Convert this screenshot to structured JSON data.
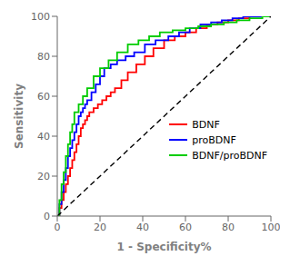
{
  "chart_data": {
    "type": "line",
    "xlabel": "1 - Specificity%",
    "ylabel": "Sensitivity",
    "xlim": [
      0,
      100
    ],
    "ylim": [
      0,
      100
    ],
    "xticks": [
      0,
      20,
      40,
      60,
      80,
      100
    ],
    "yticks": [
      0,
      20,
      40,
      60,
      80,
      100
    ],
    "grid": false,
    "legend": "right",
    "series": [
      {
        "name": "BDNF",
        "color": "#FF0000",
        "line_style": "solid",
        "x": [
          0,
          1,
          1,
          2,
          2,
          3,
          3,
          4,
          4,
          5,
          5,
          6,
          6,
          7,
          7,
          8,
          8,
          9,
          9,
          10,
          10,
          11,
          11,
          12,
          12,
          13,
          13,
          14,
          14,
          15,
          15,
          17,
          17,
          19,
          19,
          21,
          21,
          23,
          23,
          25,
          25,
          27,
          27,
          30,
          30,
          33,
          33,
          37,
          37,
          41,
          41,
          45,
          45,
          50,
          50,
          55,
          55,
          60,
          60,
          65,
          65,
          70,
          70,
          75,
          75,
          80,
          80,
          85,
          85,
          90,
          90,
          95,
          95,
          100
        ],
        "values": [
          0,
          0,
          4,
          4,
          8,
          8,
          12,
          12,
          16,
          16,
          20,
          20,
          24,
          24,
          28,
          28,
          32,
          32,
          36,
          36,
          40,
          40,
          44,
          44,
          46,
          46,
          48,
          48,
          50,
          50,
          52,
          52,
          54,
          54,
          56,
          56,
          58,
          58,
          60,
          60,
          62,
          62,
          64,
          64,
          68,
          68,
          72,
          72,
          76,
          76,
          80,
          80,
          84,
          84,
          88,
          88,
          90,
          90,
          92,
          92,
          94,
          94,
          96,
          96,
          97,
          97,
          98,
          98,
          99,
          99,
          100,
          100,
          100,
          100
        ]
      },
      {
        "name": "proBDNF",
        "color": "#0000FF",
        "line_style": "solid",
        "x": [
          0,
          1,
          1,
          2,
          2,
          3,
          3,
          4,
          4,
          5,
          5,
          6,
          6,
          7,
          7,
          8,
          8,
          9,
          9,
          10,
          10,
          11,
          11,
          12,
          12,
          13,
          13,
          14,
          14,
          16,
          16,
          18,
          18,
          20,
          20,
          22,
          22,
          25,
          25,
          28,
          28,
          32,
          32,
          36,
          36,
          41,
          41,
          46,
          46,
          52,
          52,
          57,
          57,
          62,
          62,
          67,
          67,
          72,
          72,
          77,
          77,
          82,
          82,
          87,
          87,
          92,
          92,
          97,
          97,
          100
        ],
        "values": [
          0,
          0,
          6,
          6,
          12,
          12,
          18,
          18,
          24,
          24,
          30,
          30,
          34,
          34,
          38,
          38,
          42,
          42,
          46,
          46,
          50,
          50,
          52,
          52,
          54,
          54,
          56,
          56,
          58,
          58,
          62,
          62,
          66,
          66,
          70,
          70,
          74,
          74,
          76,
          76,
          78,
          78,
          80,
          80,
          82,
          82,
          86,
          86,
          88,
          88,
          90,
          90,
          92,
          92,
          94,
          94,
          96,
          96,
          97,
          97,
          98,
          98,
          99,
          99,
          100,
          100,
          100,
          100,
          100,
          100
        ]
      },
      {
        "name": "BDNF/proBDNF",
        "color": "#00CC00",
        "line_style": "solid",
        "x": [
          0,
          1,
          1,
          2,
          2,
          3,
          3,
          4,
          4,
          5,
          5,
          6,
          6,
          7,
          7,
          8,
          8,
          10,
          10,
          12,
          12,
          14,
          14,
          17,
          17,
          20,
          20,
          24,
          24,
          28,
          28,
          33,
          33,
          38,
          38,
          43,
          43,
          48,
          48,
          54,
          54,
          60,
          60,
          66,
          66,
          72,
          72,
          78,
          78,
          84,
          84,
          90,
          90,
          96,
          96,
          100
        ],
        "values": [
          0,
          0,
          8,
          8,
          16,
          16,
          22,
          22,
          30,
          30,
          36,
          36,
          42,
          42,
          46,
          46,
          52,
          52,
          56,
          56,
          60,
          60,
          64,
          64,
          70,
          70,
          74,
          74,
          78,
          78,
          82,
          82,
          86,
          86,
          88,
          88,
          90,
          90,
          92,
          92,
          93,
          93,
          94,
          94,
          95,
          95,
          96,
          96,
          97,
          97,
          98,
          98,
          99,
          99,
          100,
          100
        ]
      },
      {
        "color": "black",
        "line_style": "dashed",
        "x": [
          0,
          100
        ],
        "values": [
          0,
          100
        ]
      }
    ]
  }
}
